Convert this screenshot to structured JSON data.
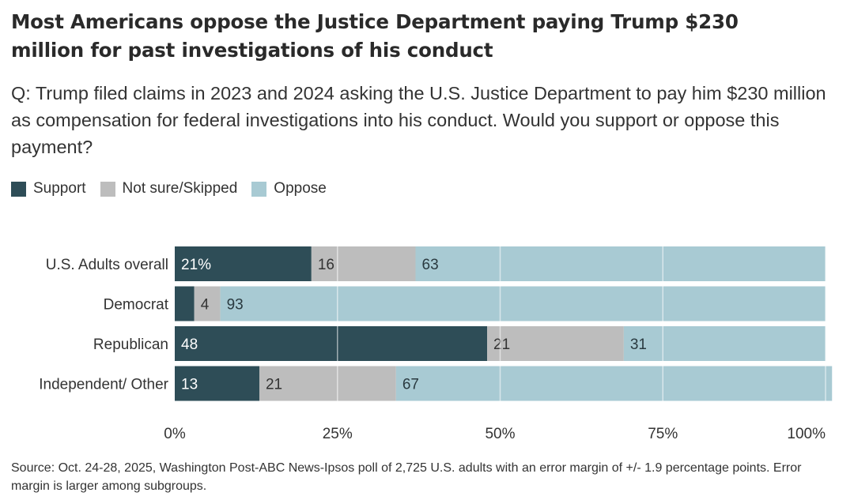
{
  "header": {
    "title": "Most Americans oppose the Justice Department paying Trump $230 million for past investigations of his conduct",
    "subtitle": "Q: Trump filed claims in 2023 and 2024 asking the U.S. Justice Department to pay him $230 million as compensation for federal investigations into his conduct. Would you support or oppose this payment?"
  },
  "footer": {
    "source": "Source: Oct. 24-28, 2025, Washington Post-ABC News-Ipsos poll of 2,725 U.S. adults with an error margin of +/- 1.9 percentage points. Error margin is larger among subgroups."
  },
  "chart_data": {
    "type": "bar",
    "orientation": "horizontal",
    "stacked": true,
    "title": "Most Americans oppose the Justice Department paying Trump $230 million for past investigations of his conduct",
    "xlabel": "",
    "ylabel": "",
    "xlim": [
      0,
      100
    ],
    "xticks": [
      "0%",
      "25%",
      "50%",
      "75%",
      "100%"
    ],
    "xtick_values": [
      0,
      25,
      50,
      75,
      100
    ],
    "grid": true,
    "legend_position": "top-left",
    "categories": [
      "U.S. Adults overall",
      "Democrat",
      "Republican",
      "Independent/ Other"
    ],
    "series": [
      {
        "name": "Support",
        "color": "#2e4d57",
        "values": [
          21,
          3,
          48,
          13
        ],
        "labels": [
          "21%",
          "",
          "48",
          "13"
        ],
        "label_color": "#ffffff"
      },
      {
        "name": "Not sure/Skipped",
        "color": "#bdbdbd",
        "values": [
          16,
          4,
          21,
          21
        ],
        "labels": [
          "16",
          "4",
          "21",
          "21"
        ],
        "label_color": "#333333"
      },
      {
        "name": "Oppose",
        "color": "#a8cad3",
        "values": [
          63,
          93,
          31,
          67
        ],
        "labels": [
          "63",
          "93",
          "31",
          "67"
        ],
        "label_color": "#2a3a40"
      }
    ]
  }
}
